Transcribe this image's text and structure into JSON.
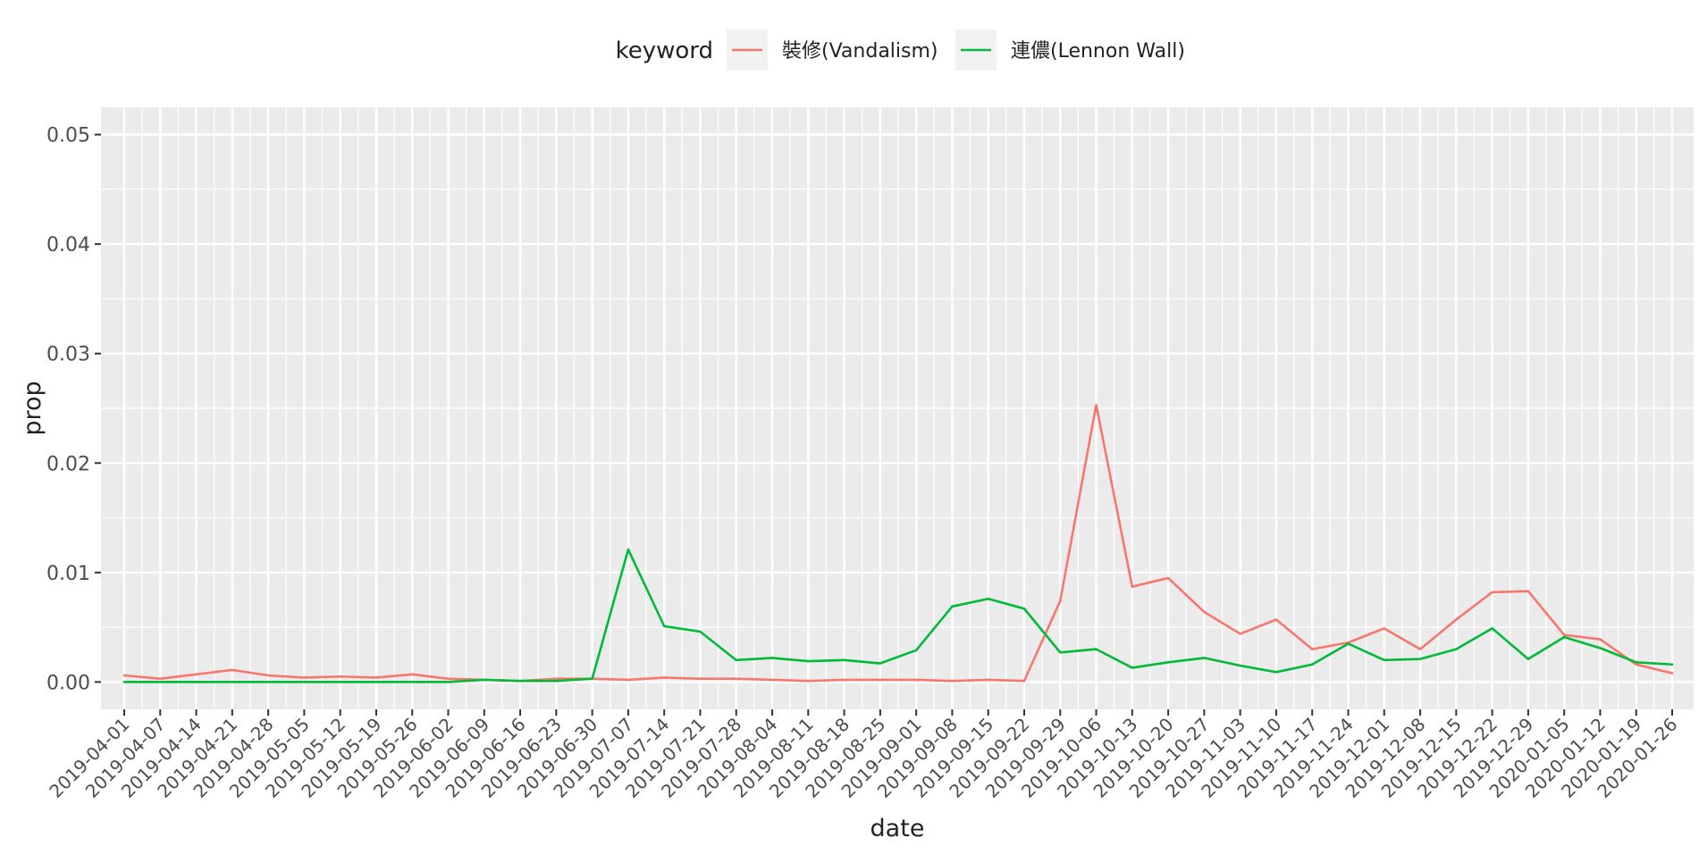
{
  "chart_data": {
    "type": "line",
    "title": "",
    "xlabel": "date",
    "ylabel": "prop",
    "ylim": [
      -0.0025,
      0.0525
    ],
    "yticks": [
      0.0,
      0.01,
      0.02,
      0.03,
      0.04,
      0.05
    ],
    "ytick_labels": [
      "0.00",
      "0.01",
      "0.02",
      "0.03",
      "0.04",
      "0.05"
    ],
    "grid": true,
    "legend_position": "top",
    "legend_title": "keyword",
    "x": [
      "2019-04-01",
      "2019-04-07",
      "2019-04-14",
      "2019-04-21",
      "2019-04-28",
      "2019-05-05",
      "2019-05-12",
      "2019-05-19",
      "2019-05-26",
      "2019-06-02",
      "2019-06-09",
      "2019-06-16",
      "2019-06-23",
      "2019-06-30",
      "2019-07-07",
      "2019-07-14",
      "2019-07-21",
      "2019-07-28",
      "2019-08-04",
      "2019-08-11",
      "2019-08-18",
      "2019-08-25",
      "2019-09-01",
      "2019-09-08",
      "2019-09-15",
      "2019-09-22",
      "2019-09-29",
      "2019-10-06",
      "2019-10-13",
      "2019-10-20",
      "2019-10-27",
      "2019-11-03",
      "2019-11-10",
      "2019-11-17",
      "2019-11-24",
      "2019-12-01",
      "2019-12-08",
      "2019-12-15",
      "2019-12-22",
      "2019-12-29",
      "2020-01-05",
      "2020-01-12",
      "2020-01-19",
      "2020-01-26"
    ],
    "series": [
      {
        "name": "裝修(Vandalism)",
        "color": "#F8766D",
        "values": [
          0.0006,
          0.0003,
          0.0007,
          0.0011,
          0.0006,
          0.0004,
          0.0005,
          0.0004,
          0.0007,
          0.0003,
          0.0002,
          0.0001,
          0.0003,
          0.0003,
          0.0002,
          0.0004,
          0.0003,
          0.0003,
          0.0002,
          0.0001,
          0.0002,
          0.0002,
          0.0002,
          0.0001,
          0.0002,
          0.0001,
          0.0074,
          0.0253,
          0.0087,
          0.0095,
          0.0064,
          0.0044,
          0.0057,
          0.003,
          0.0036,
          0.0049,
          0.003,
          0.0057,
          0.0082,
          0.0083,
          0.0043,
          0.0039,
          0.0016,
          0.0008
        ]
      },
      {
        "name": "連儂(Lennon Wall)",
        "color": "#00BA38",
        "values": [
          0.0,
          0.0,
          0.0,
          0.0,
          0.0,
          0.0,
          0.0,
          0.0,
          0.0,
          0.0,
          0.0002,
          0.0001,
          0.0001,
          0.0003,
          0.0121,
          0.0051,
          0.0046,
          0.002,
          0.0022,
          0.0019,
          0.002,
          0.0017,
          0.0029,
          0.0069,
          0.0076,
          0.0067,
          0.0027,
          0.003,
          0.0013,
          0.0018,
          0.0022,
          0.0015,
          0.0009,
          0.0016,
          0.0035,
          0.002,
          0.0021,
          0.003,
          0.0049,
          0.0021,
          0.0041,
          0.0031,
          0.0018,
          0.0016
        ]
      }
    ]
  }
}
